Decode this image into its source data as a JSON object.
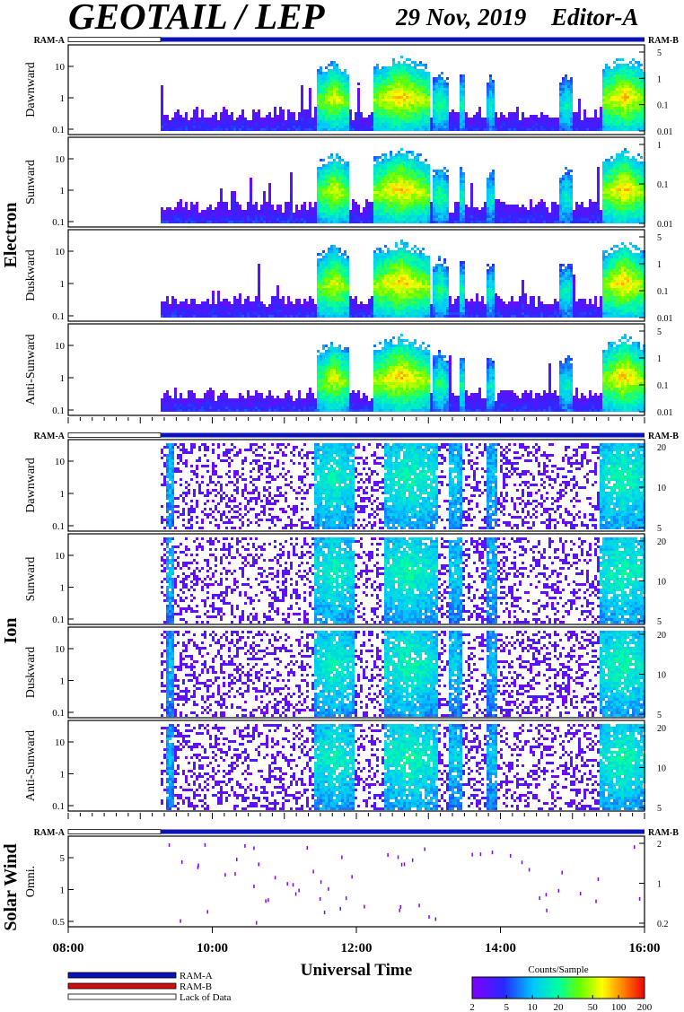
{
  "header": {
    "title": "GEOTAIL / LEP",
    "date": "29 Nov, 2019",
    "editor": "Editor-A"
  },
  "colors": {
    "ram_a": "#0b12b8",
    "ram_b": "#d01010",
    "lack": "#ffffff"
  },
  "chart_data": [
    {
      "type": "heatmap",
      "group": "Electron",
      "xlim": [
        "08:00",
        "16:00"
      ],
      "data_start": "09:17",
      "status_left": "RAM-A",
      "status_right": "RAM-B",
      "panels": [
        {
          "label": "Dawnward",
          "left_ticks": [
            "10",
            "1",
            "0.1"
          ],
          "right_ticks": [
            "5",
            "1",
            "0.1",
            "0.01"
          ]
        },
        {
          "label": "Sunward",
          "left_ticks": [
            "10",
            "1",
            "0.1"
          ],
          "right_ticks": [
            "1",
            "0.1",
            "0.01"
          ]
        },
        {
          "label": "Duskward",
          "left_ticks": [
            "10",
            "1",
            "0.1"
          ],
          "right_ticks": [
            "5",
            "1",
            "0.1",
            "0.01"
          ]
        },
        {
          "label": "Anti-Sunward",
          "left_ticks": [
            "10",
            "1",
            "0.1"
          ],
          "right_ticks": [
            "5",
            "1",
            "0.1",
            "0.01"
          ]
        }
      ]
    },
    {
      "type": "heatmap",
      "group": "Ion",
      "xlim": [
        "08:00",
        "16:00"
      ],
      "data_start": "09:17",
      "status_left": "RAM-A",
      "status_right": "RAM-B",
      "panels": [
        {
          "label": "Dawnward",
          "left_ticks": [
            "10",
            "1",
            "0.1"
          ],
          "right_ticks": [
            "20",
            "10",
            "5"
          ]
        },
        {
          "label": "Sunward",
          "left_ticks": [
            "10",
            "1",
            "0.1"
          ],
          "right_ticks": [
            "20",
            "10",
            "5"
          ]
        },
        {
          "label": "Duskward",
          "left_ticks": [
            "10",
            "1",
            "0.1"
          ],
          "right_ticks": [
            "20",
            "10",
            "5"
          ]
        },
        {
          "label": "Anti-Sunward",
          "left_ticks": [
            "10",
            "1",
            "0.1"
          ],
          "right_ticks": [
            "20",
            "10",
            "5"
          ]
        }
      ]
    },
    {
      "type": "heatmap",
      "group": "Solar Wind",
      "xlim": [
        "08:00",
        "16:00"
      ],
      "data_start": "09:17",
      "status_left": "RAM-A",
      "status_right": "RAM-B",
      "panels": [
        {
          "label": "Omni.",
          "left_ticks": [
            "5",
            "1",
            "0.5"
          ],
          "right_ticks": [
            "2",
            "1",
            "0.2"
          ]
        }
      ]
    }
  ],
  "x_axis": {
    "label": "Universal Time",
    "ticks": [
      "08:00",
      "10:00",
      "12:00",
      "14:00",
      "16:00"
    ]
  },
  "legend": {
    "items": [
      "RAM-A",
      "RAM-B",
      "Lack of Data"
    ]
  },
  "colorbar": {
    "title": "Counts/Sample",
    "ticks": [
      "2",
      "5",
      "10",
      "20",
      "50",
      "100",
      "200"
    ]
  }
}
